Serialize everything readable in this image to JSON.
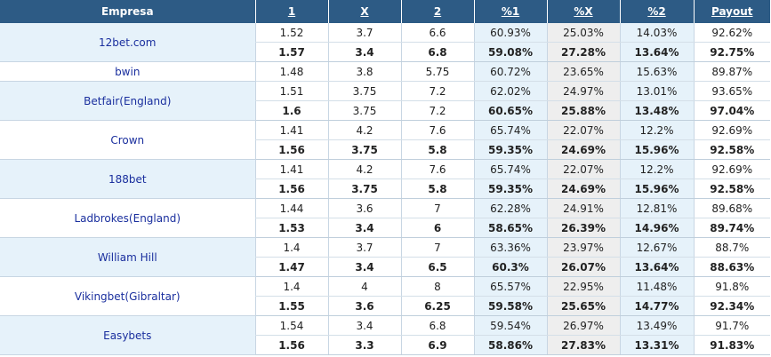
{
  "headers": {
    "company": "Empresa",
    "h1": "1",
    "hx": "X",
    "h2": "2",
    "p1": "%1",
    "px": "%X",
    "p2": "%2",
    "payout": "Payout"
  },
  "rows": [
    {
      "company": "12bet.com",
      "group": "blue",
      "lines": [
        {
          "v": [
            "1.52",
            "3.7",
            "6.6",
            "60.93%",
            "25.03%",
            "14.03%",
            "92.62%"
          ],
          "c": [
            "",
            "",
            "",
            "",
            "",
            "",
            ""
          ]
        },
        {
          "v": [
            "1.57",
            "3.4",
            "6.8",
            "59.08%",
            "27.28%",
            "13.64%",
            "92.75%"
          ],
          "c": [
            "down",
            "up",
            "down",
            "up",
            "down",
            "up",
            "down"
          ]
        }
      ]
    },
    {
      "company": "bwin",
      "group": "white",
      "lines": [
        {
          "v": [
            "1.48",
            "3.8",
            "5.75",
            "60.72%",
            "23.65%",
            "15.63%",
            "89.87%"
          ],
          "c": [
            "",
            "",
            "",
            "",
            "",
            "",
            ""
          ]
        }
      ]
    },
    {
      "company": "Betfair(England)",
      "group": "blue",
      "lines": [
        {
          "v": [
            "1.51",
            "3.75",
            "7.2",
            "62.02%",
            "24.97%",
            "13.01%",
            "93.65%"
          ],
          "c": [
            "",
            "",
            "",
            "",
            "",
            "",
            ""
          ]
        },
        {
          "v": [
            "1.6",
            "3.75",
            "7.2",
            "60.65%",
            "25.88%",
            "13.48%",
            "97.04%"
          ],
          "c": [
            "down",
            "",
            "",
            "up",
            "down",
            "down",
            "down"
          ]
        }
      ]
    },
    {
      "company": "Crown",
      "group": "white",
      "lines": [
        {
          "v": [
            "1.41",
            "4.2",
            "7.6",
            "65.74%",
            "22.07%",
            "12.2%",
            "92.69%"
          ],
          "c": [
            "",
            "",
            "",
            "",
            "",
            "",
            ""
          ]
        },
        {
          "v": [
            "1.56",
            "3.75",
            "5.8",
            "59.35%",
            "24.69%",
            "15.96%",
            "92.58%"
          ],
          "c": [
            "down",
            "up",
            "up",
            "up",
            "down",
            "down",
            "up"
          ]
        }
      ]
    },
    {
      "company": "188bet",
      "group": "blue",
      "lines": [
        {
          "v": [
            "1.41",
            "4.2",
            "7.6",
            "65.74%",
            "22.07%",
            "12.2%",
            "92.69%"
          ],
          "c": [
            "",
            "",
            "",
            "",
            "",
            "",
            ""
          ]
        },
        {
          "v": [
            "1.56",
            "3.75",
            "5.8",
            "59.35%",
            "24.69%",
            "15.96%",
            "92.58%"
          ],
          "c": [
            "down",
            "up",
            "up",
            "up",
            "down",
            "down",
            "up"
          ]
        }
      ]
    },
    {
      "company": "Ladbrokes(England)",
      "group": "white",
      "lines": [
        {
          "v": [
            "1.44",
            "3.6",
            "7",
            "62.28%",
            "24.91%",
            "12.81%",
            "89.68%"
          ],
          "c": [
            "",
            "",
            "",
            "",
            "",
            "",
            ""
          ]
        },
        {
          "v": [
            "1.53",
            "3.4",
            "6",
            "58.65%",
            "26.39%",
            "14.96%",
            "89.74%"
          ],
          "c": [
            "down",
            "up",
            "up",
            "up",
            "down",
            "down",
            "down"
          ]
        }
      ]
    },
    {
      "company": "William Hill",
      "group": "blue",
      "lines": [
        {
          "v": [
            "1.4",
            "3.7",
            "7",
            "63.36%",
            "23.97%",
            "12.67%",
            "88.7%"
          ],
          "c": [
            "",
            "",
            "",
            "",
            "",
            "",
            ""
          ]
        },
        {
          "v": [
            "1.47",
            "3.4",
            "6.5",
            "60.3%",
            "26.07%",
            "13.64%",
            "88.63%"
          ],
          "c": [
            "down",
            "up",
            "up",
            "up",
            "down",
            "down",
            "up"
          ]
        }
      ]
    },
    {
      "company": "Vikingbet(Gibraltar)",
      "group": "white",
      "lines": [
        {
          "v": [
            "1.4",
            "4",
            "8",
            "65.57%",
            "22.95%",
            "11.48%",
            "91.8%"
          ],
          "c": [
            "",
            "",
            "",
            "",
            "",
            "",
            ""
          ]
        },
        {
          "v": [
            "1.55",
            "3.6",
            "6.25",
            "59.58%",
            "25.65%",
            "14.77%",
            "92.34%"
          ],
          "c": [
            "down",
            "up",
            "up",
            "up",
            "down",
            "down",
            "down"
          ]
        }
      ]
    },
    {
      "company": "Easybets",
      "group": "blue",
      "lines": [
        {
          "v": [
            "1.54",
            "3.4",
            "6.8",
            "59.54%",
            "26.97%",
            "13.49%",
            "91.7%"
          ],
          "c": [
            "",
            "",
            "",
            "",
            "",
            "",
            ""
          ]
        },
        {
          "v": [
            "1.56",
            "3.3",
            "6.9",
            "58.86%",
            "27.83%",
            "13.31%",
            "91.83%"
          ],
          "c": [
            "down",
            "up",
            "down",
            "up",
            "down",
            "up",
            "down"
          ]
        }
      ]
    }
  ]
}
